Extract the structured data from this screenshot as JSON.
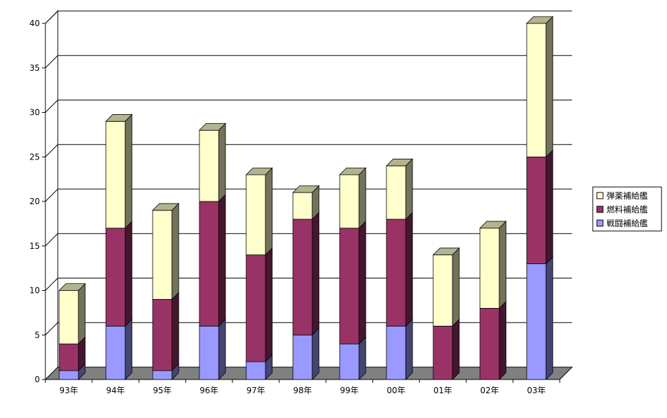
{
  "chart_data": {
    "type": "bar",
    "stacked": true,
    "three_d": true,
    "categories": [
      "93年",
      "94年",
      "95年",
      "96年",
      "97年",
      "98年",
      "99年",
      "00年",
      "01年",
      "02年",
      "03年"
    ],
    "series": [
      {
        "name": "戦闘補給艦",
        "color": "#9999ff",
        "values": [
          1,
          6,
          1,
          6,
          2,
          5,
          4,
          6,
          0,
          0,
          13
        ]
      },
      {
        "name": "燃料補給艦",
        "color": "#993366",
        "values": [
          3,
          11,
          8,
          14,
          12,
          13,
          13,
          12,
          6,
          8,
          12
        ]
      },
      {
        "name": "弾薬補給艦",
        "color": "#ffffcc",
        "values": [
          6,
          12,
          10,
          8,
          9,
          3,
          6,
          6,
          8,
          9,
          15
        ]
      }
    ],
    "ylim": [
      0,
      40
    ],
    "yticks": [
      0,
      5,
      10,
      15,
      20,
      25,
      30,
      35,
      40
    ],
    "grid": true,
    "legend": {
      "placement": "right",
      "order": [
        "弾薬補給艦",
        "燃料補給艦",
        "戦闘補給艦"
      ]
    },
    "floor_color": "#808080"
  }
}
